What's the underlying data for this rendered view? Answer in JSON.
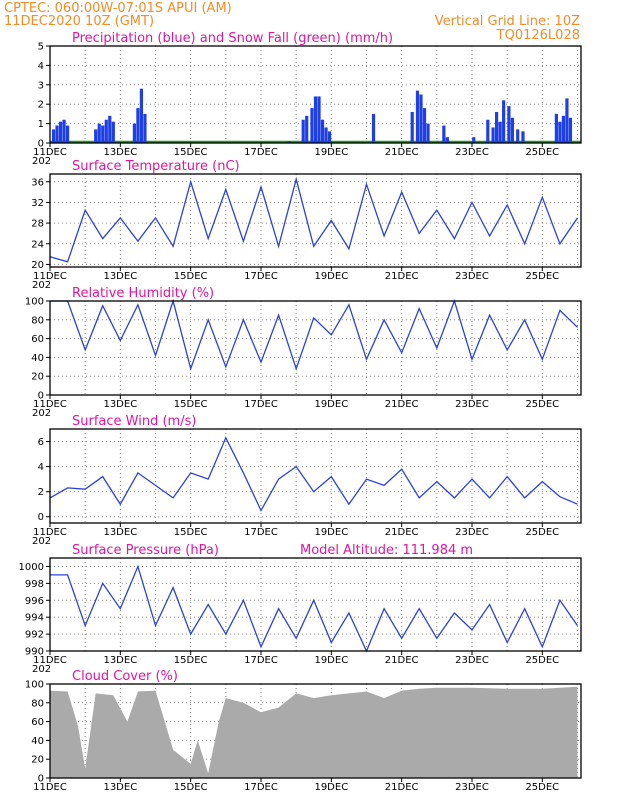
{
  "header": {
    "line1": "CPTEC:   060:00W-07:01S   APUI (AM)",
    "line2": "11DEC2020  10Z (GMT)",
    "grid_note": "Vertical Grid Line: 10Z",
    "code": "TQ0126L028"
  },
  "x_axis": {
    "start_day": 11,
    "end_day": 26.1,
    "tick_days": [
      11,
      13,
      15,
      17,
      19,
      21,
      23,
      25
    ],
    "tick_labels": [
      "11DEC",
      "13DEC",
      "15DEC",
      "17DEC",
      "19DEC",
      "21DEC",
      "23DEC",
      "25DEC"
    ],
    "year_label": "202"
  },
  "panels": [
    {
      "id": "precip",
      "title": "Precipitation (blue) and Snow Fall (green) (mm/h)",
      "ylim": [
        0,
        5
      ],
      "yticks": [
        0,
        1,
        2,
        3,
        4,
        5
      ],
      "color": "#1f3fe6",
      "snow_color": "#1a9a1a"
    },
    {
      "id": "temp",
      "title": "Surface Temperature (nC)",
      "ylim": [
        19.5,
        37.5
      ],
      "yticks": [
        20,
        24,
        28,
        32,
        36
      ],
      "color": "#2b43d6"
    },
    {
      "id": "rh",
      "title": "Relative Humidity (%)",
      "ylim": [
        0,
        100
      ],
      "yticks": [
        0,
        20,
        40,
        60,
        80,
        100
      ],
      "color": "#2b43d6"
    },
    {
      "id": "wind",
      "title": "Surface Wind (m/s)",
      "ylim": [
        -0.5,
        7
      ],
      "yticks": [
        0,
        2,
        4,
        6
      ],
      "color": "#2b43d6"
    },
    {
      "id": "pres",
      "title": "Surface Pressure (hPa)",
      "extra": "Model Altitude: 111.984 m",
      "ylim": [
        990,
        1001
      ],
      "yticks": [
        990,
        992,
        994,
        996,
        998,
        1000
      ],
      "color": "#2b43d6"
    },
    {
      "id": "cloud",
      "title": "Cloud Cover (%)",
      "ylim": [
        0,
        100
      ],
      "yticks": [
        0,
        20,
        40,
        60,
        80,
        100
      ],
      "color": "#aaaaaa"
    }
  ],
  "chart_data": [
    {
      "type": "bar",
      "panel": "precip",
      "x": [
        11.1,
        11.2,
        11.3,
        11.4,
        11.5,
        12.3,
        12.4,
        12.5,
        12.6,
        12.7,
        12.8,
        13.4,
        13.5,
        13.6,
        13.7,
        17.8,
        18.2,
        18.3,
        18.45,
        18.55,
        18.65,
        18.75,
        18.85,
        18.95,
        20.2,
        21.3,
        21.45,
        21.55,
        21.65,
        21.75,
        22.2,
        22.3,
        23.05,
        23.45,
        23.6,
        23.7,
        23.8,
        23.9,
        24.05,
        24.15,
        24.3,
        24.45,
        25.4,
        25.5,
        25.6,
        25.7,
        25.8
      ],
      "values": [
        0.7,
        0.9,
        1.1,
        1.2,
        0.9,
        0.7,
        1.0,
        0.9,
        1.2,
        1.4,
        1.1,
        1.0,
        1.8,
        2.8,
        1.5,
        0.1,
        1.2,
        1.4,
        1.8,
        2.4,
        2.4,
        1.2,
        0.8,
        0.6,
        1.5,
        1.6,
        2.7,
        2.5,
        1.8,
        1.0,
        0.9,
        0.3,
        0.3,
        1.2,
        0.8,
        1.6,
        1.1,
        2.2,
        1.9,
        1.3,
        0.7,
        0.6,
        1.5,
        1.1,
        1.4,
        2.3,
        1.3
      ]
    },
    {
      "type": "line",
      "panel": "temp",
      "x": [
        11.0,
        11.5,
        12.0,
        12.5,
        13.0,
        13.5,
        14.0,
        14.5,
        15.0,
        15.5,
        16.0,
        16.5,
        17.0,
        17.5,
        18.0,
        18.5,
        19.0,
        19.5,
        20.0,
        20.5,
        21.0,
        21.5,
        22.0,
        22.5,
        23.0,
        23.5,
        24.0,
        24.5,
        25.0,
        25.5,
        26.0
      ],
      "values": [
        21.5,
        20.5,
        30.5,
        25.0,
        29.0,
        24.5,
        29.0,
        23.5,
        36.0,
        25.0,
        34.5,
        24.5,
        35.0,
        23.5,
        36.5,
        23.5,
        28.5,
        23.0,
        35.5,
        25.5,
        34.0,
        26.0,
        30.5,
        25.0,
        32.0,
        25.5,
        31.5,
        24.0,
        33.0,
        24.0,
        29.0
      ]
    },
    {
      "type": "line",
      "panel": "rh",
      "x": [
        11.0,
        11.5,
        12.0,
        12.5,
        13.0,
        13.5,
        14.0,
        14.5,
        15.0,
        15.5,
        16.0,
        16.5,
        17.0,
        17.5,
        18.0,
        18.5,
        19.0,
        19.5,
        20.0,
        20.5,
        21.0,
        21.5,
        22.0,
        22.5,
        23.0,
        23.5,
        24.0,
        24.5,
        25.0,
        25.5,
        26.0
      ],
      "values": [
        100.0,
        100.0,
        48.0,
        95.0,
        58.0,
        96.0,
        42.0,
        100.0,
        28.0,
        80.0,
        30.0,
        80.0,
        35.0,
        85.0,
        28.0,
        82.0,
        64.0,
        96.0,
        38.0,
        80.0,
        45.0,
        92.0,
        50.0,
        100.0,
        38.0,
        85.0,
        48.0,
        80.0,
        38.0,
        90.0,
        72.0
      ]
    },
    {
      "type": "line",
      "panel": "wind",
      "x": [
        11.0,
        11.5,
        12.0,
        12.5,
        13.0,
        13.5,
        14.0,
        14.5,
        15.0,
        15.5,
        16.0,
        16.5,
        17.0,
        17.5,
        18.0,
        18.5,
        19.0,
        19.5,
        20.0,
        20.5,
        21.0,
        21.5,
        22.0,
        22.5,
        23.0,
        23.5,
        24.0,
        24.5,
        25.0,
        25.5,
        26.0
      ],
      "values": [
        1.5,
        2.3,
        2.2,
        3.2,
        1.0,
        3.5,
        2.5,
        1.5,
        3.5,
        3.0,
        6.3,
        3.5,
        0.5,
        3.0,
        4.0,
        2.0,
        3.2,
        1.0,
        3.0,
        2.5,
        3.8,
        1.5,
        2.8,
        1.5,
        3.0,
        1.5,
        3.2,
        1.5,
        2.8,
        1.6,
        1.0
      ]
    },
    {
      "type": "line",
      "panel": "pres",
      "x": [
        11.0,
        11.5,
        12.0,
        12.5,
        13.0,
        13.5,
        14.0,
        14.5,
        15.0,
        15.5,
        16.0,
        16.5,
        17.0,
        17.5,
        18.0,
        18.5,
        19.0,
        19.5,
        20.0,
        20.5,
        21.0,
        21.5,
        22.0,
        22.5,
        23.0,
        23.5,
        24.0,
        24.5,
        25.0,
        25.5,
        26.0
      ],
      "values": [
        999.0,
        999.0,
        993.0,
        998.0,
        995.0,
        1000.0,
        993.0,
        997.5,
        992.0,
        995.5,
        992.0,
        996.0,
        990.5,
        995.0,
        991.5,
        996.0,
        991.0,
        994.5,
        990.0,
        995.0,
        991.5,
        995.0,
        991.5,
        994.5,
        992.5,
        995.5,
        991.0,
        995.0,
        990.5,
        996.0,
        993.0
      ]
    },
    {
      "type": "area",
      "panel": "cloud",
      "x": [
        11.0,
        11.5,
        11.8,
        12.0,
        12.3,
        12.8,
        13.2,
        13.5,
        14.0,
        14.5,
        15.0,
        15.2,
        15.5,
        15.8,
        16.0,
        16.5,
        17.0,
        17.5,
        18.0,
        18.5,
        19.0,
        19.5,
        20.0,
        20.5,
        21.0,
        21.5,
        22.0,
        23.0,
        24.0,
        25.0,
        26.0
      ],
      "values": [
        93.0,
        92.0,
        55.0,
        10.0,
        90.0,
        88.0,
        60.0,
        92.0,
        93.0,
        30.0,
        15.0,
        40.0,
        5.0,
        60.0,
        85.0,
        80.0,
        70.0,
        75.0,
        90.0,
        85.0,
        88.0,
        90.0,
        92.0,
        85.0,
        93.0,
        95.0,
        96.0,
        96.0,
        95.0,
        95.0,
        97.0
      ]
    }
  ]
}
